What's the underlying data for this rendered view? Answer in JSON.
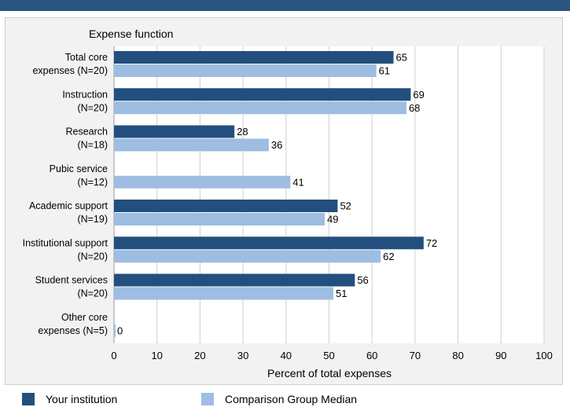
{
  "chart_data": {
    "type": "bar",
    "orientation": "horizontal",
    "category_axis_title": "Expense function",
    "categories": [
      [
        "Total core",
        "expenses (N=20)"
      ],
      [
        "Instruction",
        "(N=20)"
      ],
      [
        "Research",
        "(N=18)"
      ],
      [
        "Pubic service",
        "(N=12)"
      ],
      [
        "Academic support",
        "(N=19)"
      ],
      [
        "Institutional support",
        "(N=20)"
      ],
      [
        "Student services",
        "(N=20)"
      ],
      [
        "Other core",
        "expenses (N=5)"
      ]
    ],
    "series": [
      {
        "name": "Your institution",
        "color": "#234f7e",
        "values": [
          65,
          69,
          28,
          null,
          52,
          72,
          56,
          null
        ]
      },
      {
        "name": "Comparison Group Median",
        "color": "#9dbde2",
        "values": [
          61,
          68,
          36,
          41,
          49,
          62,
          51,
          0
        ]
      }
    ],
    "xlabel": "Percent of total expenses",
    "xlim": [
      0,
      100
    ],
    "xticks": [
      0,
      10,
      20,
      30,
      40,
      50,
      60,
      70,
      80,
      90,
      100
    ],
    "grid": true,
    "legend_position": "bottom"
  }
}
